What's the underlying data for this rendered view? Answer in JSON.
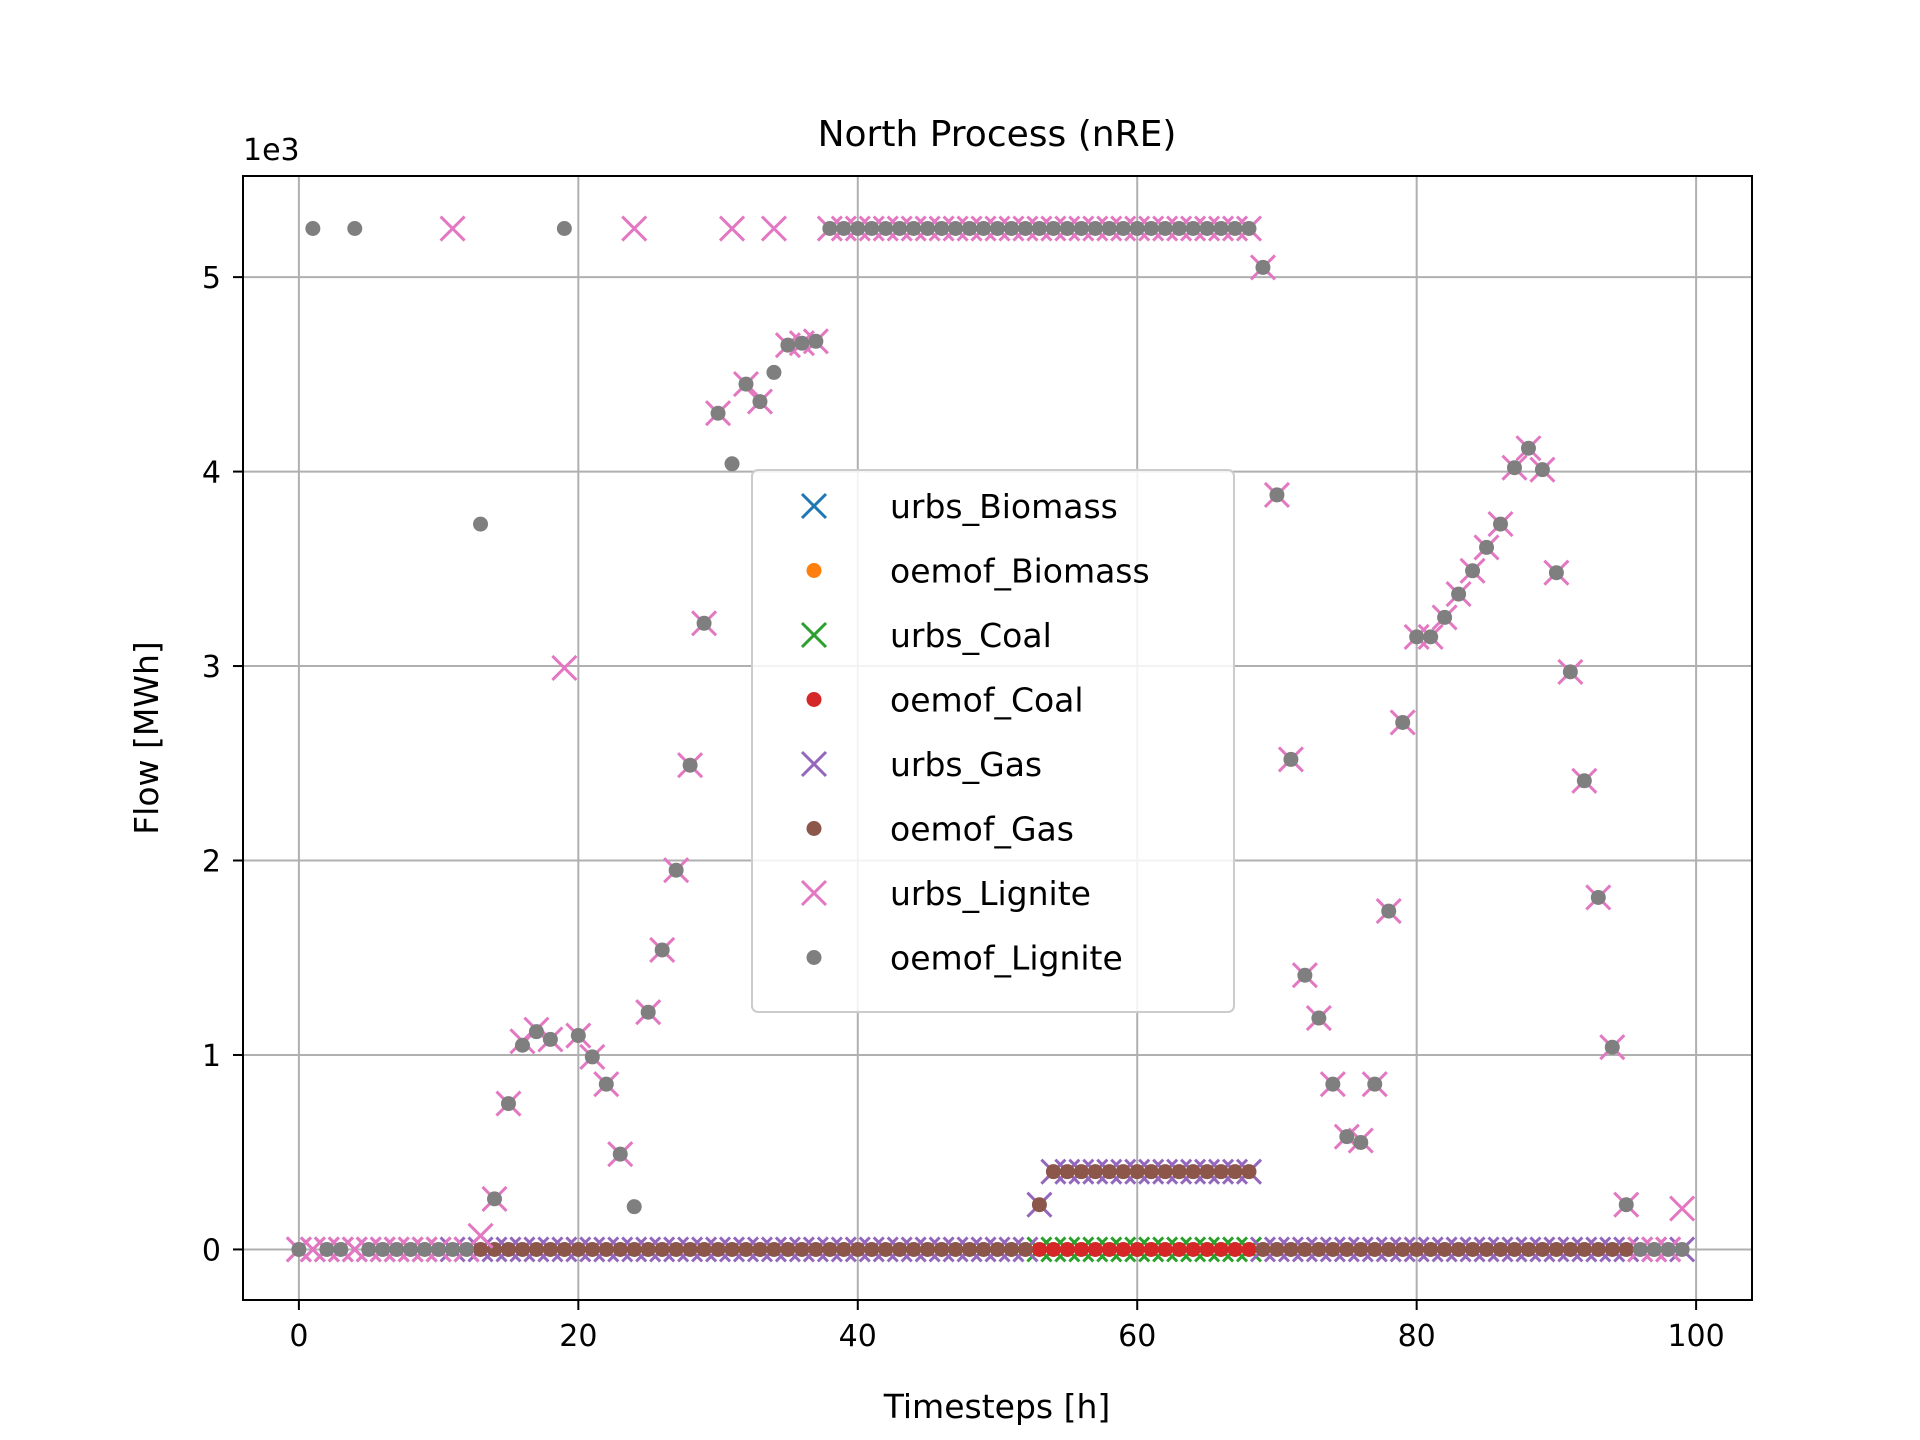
{
  "chart_data": {
    "type": "scatter",
    "title": "North Process (nRE)",
    "xlabel": "Timesteps [h]",
    "ylabel": "Flow [MWh]",
    "y_offset_text": "1e3",
    "y_scale_factor": 1000,
    "xlim": [
      -4,
      104
    ],
    "ylim": [
      -260,
      5520
    ],
    "x_ticks": [
      0,
      20,
      40,
      60,
      80,
      100
    ],
    "y_ticks": [
      0,
      1000,
      2000,
      3000,
      4000,
      5000
    ],
    "y_tick_labels": [
      "0",
      "1",
      "2",
      "3",
      "4",
      "5"
    ],
    "grid": true,
    "legend_position": "center",
    "series": [
      {
        "name": "urbs_Biomass",
        "marker": "x",
        "color": "#1f77b4",
        "x": [],
        "y": []
      },
      {
        "name": "oemof_Biomass",
        "marker": "o",
        "color": "#ff7f0e",
        "x": [],
        "y": []
      },
      {
        "name": "urbs_Coal",
        "marker": "x",
        "color": "#2ca02c",
        "x": [
          53,
          54,
          55,
          56,
          57,
          58,
          59,
          60,
          61,
          62,
          63,
          64,
          65,
          66,
          67,
          68
        ],
        "y": [
          0,
          0,
          0,
          0,
          0,
          0,
          0,
          0,
          0,
          0,
          0,
          0,
          0,
          0,
          0,
          0
        ]
      },
      {
        "name": "oemof_Coal",
        "marker": "o",
        "color": "#d62728",
        "x": [
          53,
          54,
          55,
          56,
          57,
          58,
          59,
          60,
          61,
          62,
          63,
          64,
          65,
          66,
          67,
          68
        ],
        "y": [
          0,
          0,
          0,
          0,
          0,
          0,
          0,
          0,
          0,
          0,
          0,
          0,
          0,
          0,
          0,
          0
        ]
      },
      {
        "name": "urbs_Gas",
        "marker": "x",
        "color": "#9467bd",
        "x": [
          0,
          1,
          2,
          3,
          4,
          5,
          6,
          7,
          8,
          9,
          10,
          11,
          12,
          13,
          14,
          15,
          16,
          17,
          18,
          19,
          20,
          21,
          22,
          23,
          24,
          25,
          26,
          27,
          28,
          29,
          30,
          31,
          32,
          33,
          34,
          35,
          36,
          37,
          38,
          39,
          40,
          41,
          42,
          43,
          44,
          45,
          46,
          47,
          48,
          49,
          50,
          51,
          52,
          53,
          54,
          55,
          56,
          57,
          58,
          59,
          60,
          61,
          62,
          63,
          64,
          65,
          66,
          67,
          68,
          69,
          70,
          71,
          72,
          73,
          74,
          75,
          76,
          77,
          78,
          79,
          80,
          81,
          82,
          83,
          84,
          85,
          86,
          87,
          88,
          89,
          90,
          91,
          92,
          93,
          94,
          95,
          96,
          97,
          98,
          99
        ],
        "y": [
          0,
          0,
          0,
          0,
          0,
          0,
          0,
          0,
          0,
          0,
          0,
          0,
          0,
          0,
          0,
          0,
          0,
          0,
          0,
          0,
          0,
          0,
          0,
          0,
          0,
          0,
          0,
          0,
          0,
          0,
          0,
          0,
          0,
          0,
          0,
          0,
          0,
          0,
          0,
          0,
          0,
          0,
          0,
          0,
          0,
          0,
          0,
          0,
          0,
          0,
          0,
          0,
          0,
          230,
          400,
          400,
          400,
          400,
          400,
          400,
          400,
          400,
          400,
          400,
          400,
          400,
          400,
          400,
          400,
          0,
          0,
          0,
          0,
          0,
          0,
          0,
          0,
          0,
          0,
          0,
          0,
          0,
          0,
          0,
          0,
          0,
          0,
          0,
          0,
          0,
          0,
          0,
          0,
          0,
          0,
          0,
          0,
          0,
          0,
          0
        ]
      },
      {
        "name": "oemof_Gas",
        "marker": "o",
        "color": "#8c564b",
        "x": [
          13,
          14,
          15,
          16,
          17,
          18,
          19,
          20,
          21,
          22,
          23,
          24,
          25,
          26,
          27,
          28,
          29,
          30,
          31,
          32,
          33,
          34,
          35,
          36,
          37,
          38,
          39,
          40,
          41,
          42,
          43,
          44,
          45,
          46,
          47,
          48,
          49,
          50,
          51,
          52,
          53,
          54,
          55,
          56,
          57,
          58,
          59,
          60,
          61,
          62,
          63,
          64,
          65,
          66,
          67,
          68,
          69,
          70,
          71,
          72,
          73,
          74,
          75,
          76,
          77,
          78,
          79,
          80,
          81,
          82,
          83,
          84,
          85,
          86,
          87,
          88,
          89,
          90,
          91,
          92,
          93,
          94,
          95
        ],
        "y": [
          0,
          0,
          0,
          0,
          0,
          0,
          0,
          0,
          0,
          0,
          0,
          0,
          0,
          0,
          0,
          0,
          0,
          0,
          0,
          0,
          0,
          0,
          0,
          0,
          0,
          0,
          0,
          0,
          0,
          0,
          0,
          0,
          0,
          0,
          0,
          0,
          0,
          0,
          0,
          0,
          230,
          400,
          400,
          400,
          400,
          400,
          400,
          400,
          400,
          400,
          400,
          400,
          400,
          400,
          400,
          400,
          0,
          0,
          0,
          0,
          0,
          0,
          0,
          0,
          0,
          0,
          0,
          0,
          0,
          0,
          0,
          0,
          0,
          0,
          0,
          0,
          0,
          0,
          0,
          0,
          0,
          0,
          0
        ]
      },
      {
        "name": "urbs_Lignite",
        "marker": "x",
        "color": "#e377c2",
        "x": [
          0,
          1,
          2,
          3,
          4,
          5,
          6,
          7,
          8,
          9,
          10,
          11,
          12,
          13,
          14,
          15,
          16,
          17,
          18,
          19,
          20,
          21,
          22,
          23,
          24,
          25,
          26,
          27,
          28,
          29,
          30,
          31,
          32,
          33,
          34,
          35,
          36,
          37,
          38,
          39,
          40,
          41,
          42,
          43,
          44,
          45,
          46,
          47,
          48,
          49,
          50,
          51,
          52,
          53,
          54,
          55,
          56,
          57,
          58,
          59,
          60,
          61,
          62,
          63,
          64,
          65,
          66,
          67,
          68,
          69,
          70,
          71,
          72,
          73,
          74,
          75,
          76,
          77,
          78,
          79,
          80,
          81,
          82,
          83,
          84,
          85,
          86,
          87,
          88,
          89,
          90,
          91,
          92,
          93,
          94,
          95,
          96,
          97,
          98,
          99
        ],
        "y": [
          0,
          0,
          0,
          0,
          0,
          0,
          0,
          0,
          0,
          0,
          0,
          5250,
          0,
          70,
          260,
          750,
          1070,
          1130,
          1080,
          2990,
          1100,
          990,
          850,
          490,
          5250,
          1220,
          1540,
          1950,
          2490,
          3220,
          4300,
          5250,
          4450,
          4360,
          5250,
          4650,
          4660,
          4670,
          5250,
          5250,
          5250,
          5250,
          5250,
          5250,
          5250,
          5250,
          5250,
          5250,
          5250,
          5250,
          5250,
          5250,
          5250,
          5250,
          5250,
          5250,
          5250,
          5250,
          5250,
          5250,
          5250,
          5250,
          5250,
          5250,
          5250,
          5250,
          5250,
          5250,
          5250,
          5050,
          3880,
          2520,
          1410,
          1190,
          850,
          580,
          560,
          850,
          1740,
          2710,
          3150,
          3150,
          3250,
          3370,
          3490,
          3610,
          3730,
          4020,
          4120,
          4010,
          3480,
          2970,
          2410,
          1810,
          1040,
          230,
          0,
          0,
          0,
          210
        ]
      },
      {
        "name": "oemof_Lignite",
        "marker": "o",
        "color": "#7f7f7f",
        "x": [
          0,
          1,
          2,
          3,
          4,
          5,
          6,
          7,
          8,
          9,
          10,
          11,
          12,
          13,
          14,
          15,
          16,
          17,
          18,
          19,
          20,
          21,
          22,
          23,
          24,
          25,
          26,
          27,
          28,
          29,
          30,
          31,
          32,
          33,
          34,
          35,
          36,
          37,
          38,
          39,
          40,
          41,
          42,
          43,
          44,
          45,
          46,
          47,
          48,
          49,
          50,
          51,
          52,
          53,
          54,
          55,
          56,
          57,
          58,
          59,
          60,
          61,
          62,
          63,
          64,
          65,
          66,
          67,
          68,
          69,
          70,
          71,
          72,
          73,
          74,
          75,
          76,
          77,
          78,
          79,
          80,
          81,
          82,
          83,
          84,
          85,
          86,
          87,
          88,
          89,
          90,
          91,
          92,
          93,
          94,
          95,
          96,
          97,
          98,
          99
        ],
        "y": [
          0,
          5250,
          0,
          0,
          5250,
          0,
          0,
          0,
          0,
          0,
          0,
          0,
          0,
          3730,
          260,
          750,
          1050,
          1120,
          1080,
          5250,
          1100,
          990,
          850,
          490,
          220,
          1220,
          1540,
          1950,
          2490,
          3220,
          4300,
          4040,
          4450,
          4360,
          4510,
          4650,
          4660,
          4670,
          5250,
          5250,
          5250,
          5250,
          5250,
          5250,
          5250,
          5250,
          5250,
          5250,
          5250,
          5250,
          5250,
          5250,
          5250,
          5250,
          5250,
          5250,
          5250,
          5250,
          5250,
          5250,
          5250,
          5250,
          5250,
          5250,
          5250,
          5250,
          5250,
          5250,
          5250,
          5050,
          3880,
          2520,
          1410,
          1190,
          850,
          580,
          550,
          850,
          1740,
          2710,
          3150,
          3150,
          3250,
          3370,
          3490,
          3610,
          3730,
          4020,
          4120,
          4010,
          3480,
          2970,
          2410,
          1810,
          1040,
          230,
          0,
          0,
          0,
          0
        ]
      }
    ]
  }
}
